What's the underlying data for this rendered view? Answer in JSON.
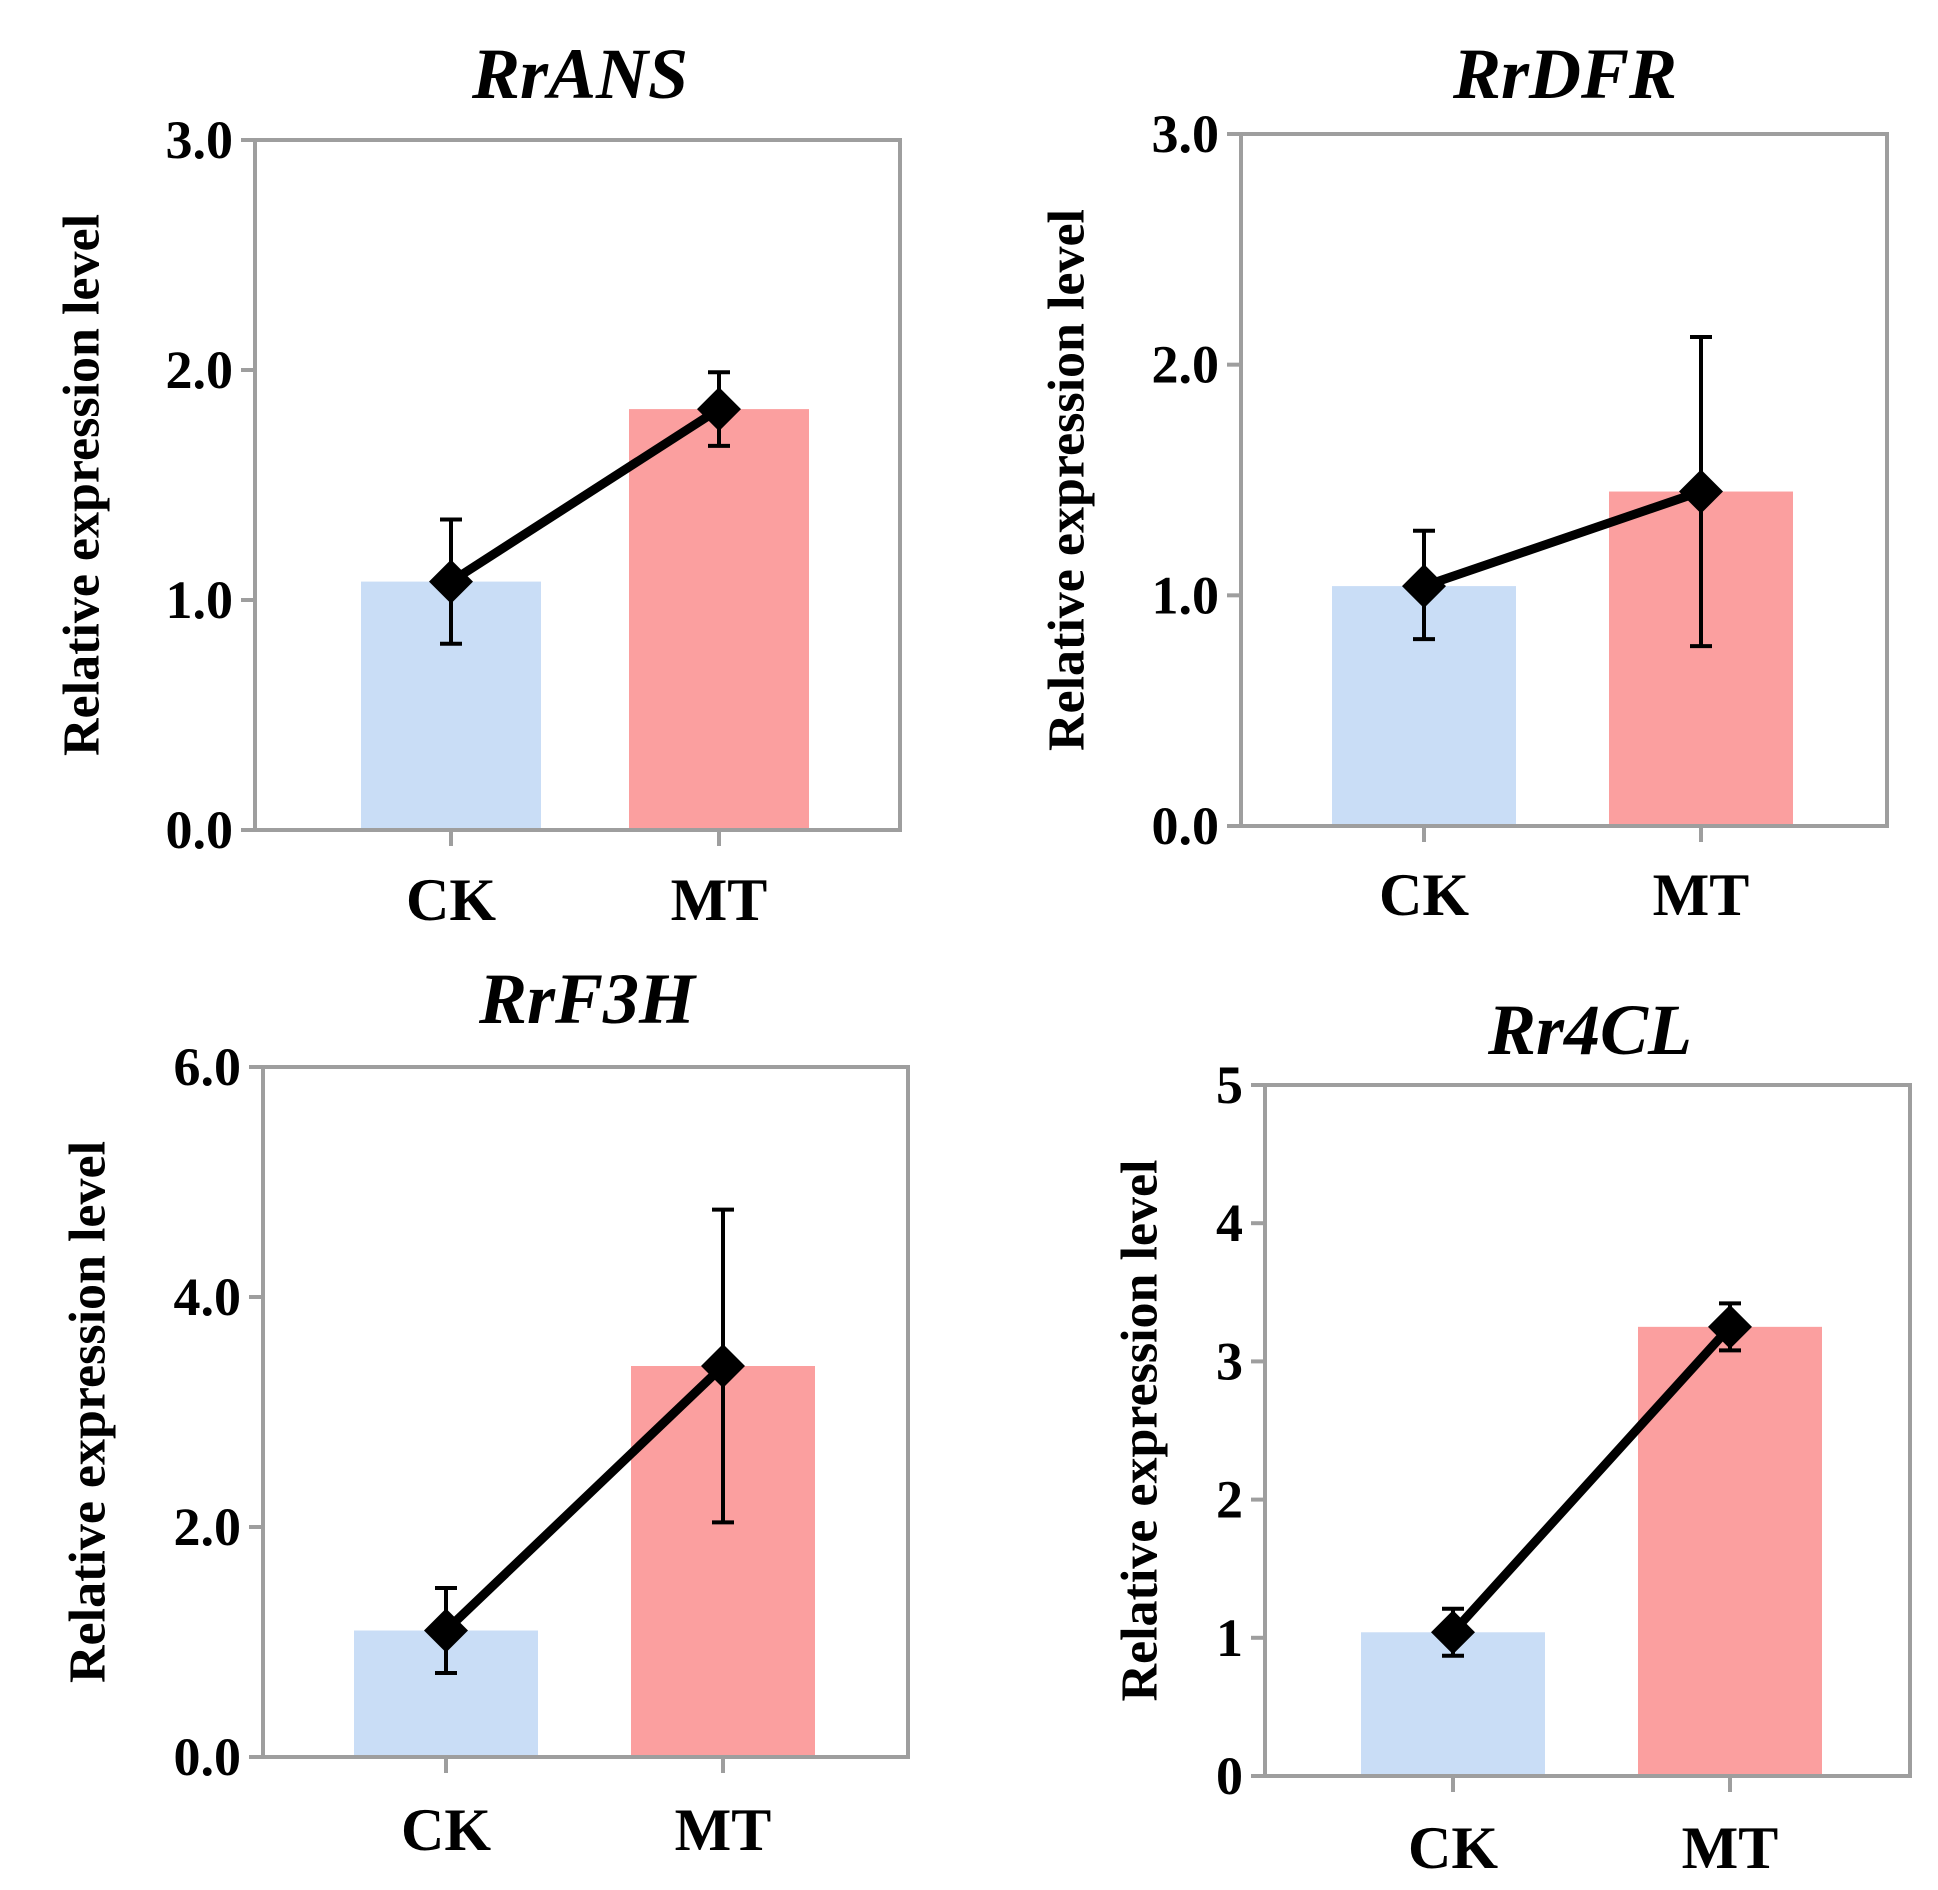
{
  "colors": {
    "ck_bar": "#c9ddf6",
    "mt_bar": "#fb9f9f",
    "axis": "#9e9e9e",
    "line": "#000000"
  },
  "chart_data": [
    {
      "type": "bar",
      "title": "RrANS",
      "ylabel": "Relative expression level",
      "categories": [
        "CK",
        "MT"
      ],
      "values": [
        1.08,
        1.83
      ],
      "error": [
        [
          0.81,
          1.35
        ],
        [
          1.67,
          1.99
        ]
      ],
      "ylim": [
        0,
        3
      ],
      "yticks": [
        0,
        1,
        2,
        3
      ],
      "ytick_labels": [
        "0.0",
        "1.0",
        "2.0",
        "3.0"
      ],
      "grid": false
    },
    {
      "type": "bar",
      "title": "RrDFR",
      "ylabel": "Relative expression level",
      "categories": [
        "CK",
        "MT"
      ],
      "values": [
        1.04,
        1.45
      ],
      "error": [
        [
          0.81,
          1.28
        ],
        [
          0.78,
          2.12
        ]
      ],
      "ylim": [
        0,
        3
      ],
      "yticks": [
        0,
        1,
        2,
        3
      ],
      "ytick_labels": [
        "0.0",
        "1.0",
        "2.0",
        "3.0"
      ],
      "grid": false
    },
    {
      "type": "bar",
      "title": "RrF3H",
      "ylabel": "Relative expression level",
      "categories": [
        "CK",
        "MT"
      ],
      "values": [
        1.1,
        3.4
      ],
      "error": [
        [
          0.73,
          1.47
        ],
        [
          2.04,
          4.76
        ]
      ],
      "ylim": [
        0,
        6
      ],
      "yticks": [
        0,
        2,
        4,
        6
      ],
      "ytick_labels": [
        "0.0",
        "2.0",
        "4.0",
        "6.0"
      ],
      "grid": false
    },
    {
      "type": "bar",
      "title": "Rr4CL",
      "ylabel": "Relative expression level",
      "categories": [
        "CK",
        "MT"
      ],
      "values": [
        1.04,
        3.25
      ],
      "error": [
        [
          0.87,
          1.21
        ],
        [
          3.08,
          3.42
        ]
      ],
      "ylim": [
        0,
        5
      ],
      "yticks": [
        0,
        1,
        2,
        3,
        4,
        5
      ],
      "ytick_labels": [
        "0",
        "1",
        "2",
        "3",
        "4",
        "5"
      ],
      "grid": false
    }
  ]
}
